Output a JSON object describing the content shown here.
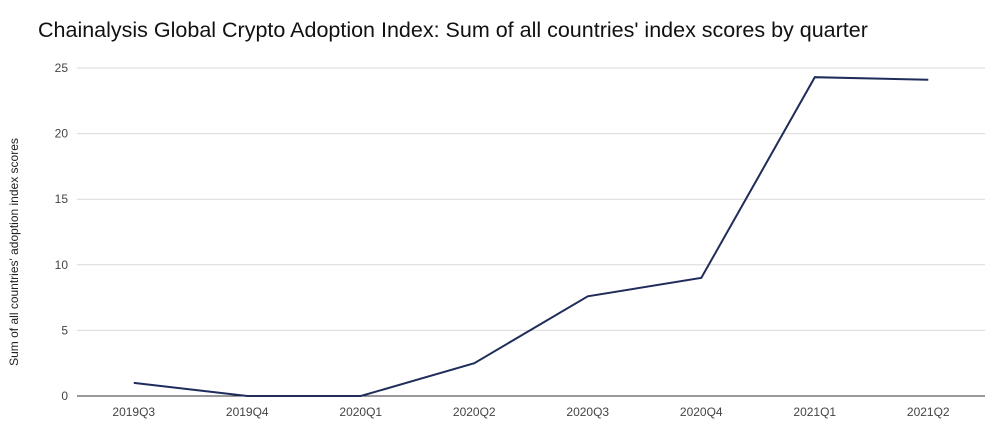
{
  "chart_data": {
    "type": "line",
    "title": "Chainalysis Global Crypto Adoption Index: Sum of all countries' index scores by quarter",
    "xlabel": "",
    "ylabel": "Sum of all countries' adoption index scores",
    "categories": [
      "2019Q3",
      "2019Q4",
      "2020Q1",
      "2020Q2",
      "2020Q3",
      "2020Q4",
      "2021Q1",
      "2021Q2"
    ],
    "series": [
      {
        "values": [
          1.0,
          0.0,
          0.0,
          2.5,
          7.6,
          9.0,
          24.3,
          24.1
        ]
      }
    ],
    "yticks": [
      "0",
      "5",
      "10",
      "15",
      "20",
      "25"
    ],
    "ylim": [
      0,
      25
    ],
    "grid": true,
    "legend": "none",
    "colors": {
      "line": "#1f2d5a",
      "grid": "#d9d9d9",
      "baseline": "#333333"
    }
  }
}
